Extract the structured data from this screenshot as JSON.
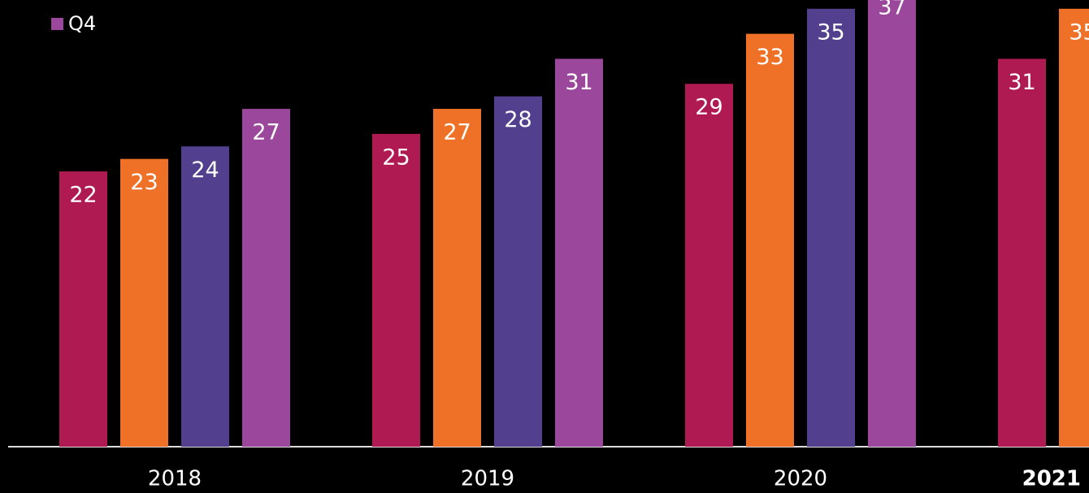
{
  "chart_data": {
    "type": "bar",
    "categories": [
      "2018",
      "2019",
      "2020",
      "2021"
    ],
    "series": [
      {
        "color": "#b01a52",
        "values": [
          22,
          25,
          29,
          31
        ]
      },
      {
        "color": "#ee7127",
        "values": [
          23,
          27,
          33,
          35
        ]
      },
      {
        "color": "#52408f",
        "values": [
          24,
          28,
          35,
          null
        ]
      },
      {
        "name": "Q4",
        "color": "#9b479c",
        "values": [
          27,
          31,
          37,
          null
        ]
      }
    ],
    "ylim": [
      0,
      35.7
    ]
  }
}
